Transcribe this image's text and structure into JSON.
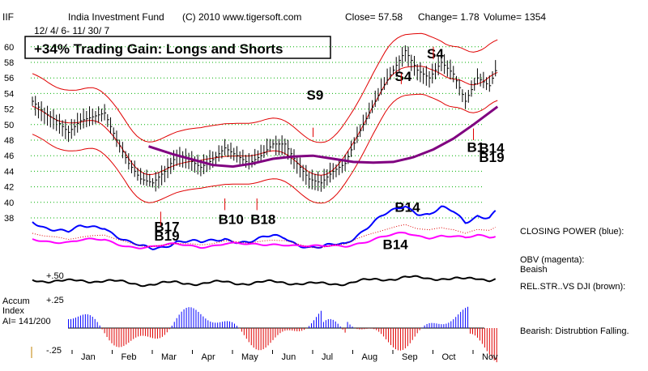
{
  "header": {
    "ticker": "IIF",
    "name": "India Investment Fund",
    "copyright": "(C) 2010 www.tigersoft.com",
    "close": "Close=  57.58",
    "change": "Change= 1.78",
    "volume": "Volume= 1354",
    "date_range": "12/ 4/ 6- 11/ 30/ 7",
    "gain_box": "+34% Trading Gain: Longs and Shorts"
  },
  "chart_data": {
    "type": "line",
    "title": "India Investment Fund",
    "months": [
      "Jan",
      "Feb",
      "Mar",
      "Apr",
      "May",
      "Jun",
      "Jul",
      "Aug",
      "Sep",
      "Oct",
      "Nov"
    ],
    "y_ticks": [
      38,
      40,
      42,
      44,
      46,
      48,
      50,
      52,
      54,
      56,
      58,
      60
    ],
    "ylim": [
      37,
      62
    ],
    "grid": true,
    "price_series": {
      "name": "IIF",
      "x": [
        0.0,
        0.3,
        0.6,
        0.9,
        1.2,
        1.5,
        1.8,
        2.1,
        2.4,
        2.7,
        3.0,
        3.3,
        3.6,
        3.9,
        4.2,
        4.5,
        4.8,
        5.1,
        5.4,
        5.7,
        6.0,
        6.3,
        6.6,
        6.9,
        7.2,
        7.5,
        7.8,
        8.1,
        8.4,
        8.7,
        9.0,
        9.3,
        9.6,
        9.9,
        10.2,
        10.5,
        10.8,
        11.1,
        11.4,
        11.6
      ],
      "close": [
        53.0,
        51.5,
        50.5,
        49.0,
        50.5,
        51.0,
        51.5,
        48.0,
        45.0,
        43.0,
        42.5,
        44.0,
        46.0,
        45.5,
        44.5,
        45.5,
        47.0,
        46.0,
        45.0,
        46.0,
        47.5,
        47.5,
        45.0,
        43.0,
        42.5,
        44.0,
        45.0,
        48.5,
        51.5,
        54.5,
        57.0,
        59.5,
        57.0,
        56.0,
        58.0,
        56.5,
        53.0,
        56.0,
        55.0,
        57.58
      ]
    },
    "moving_average_200": {
      "name": "200-day MA",
      "x": [
        2.9,
        3.5,
        4.0,
        4.5,
        5.0,
        5.5,
        6.0,
        6.5,
        7.0,
        7.5,
        8.0,
        8.5,
        9.0,
        9.5,
        10.0,
        10.5,
        11.0,
        11.6
      ],
      "values": [
        47.2,
        46.2,
        45.5,
        44.8,
        44.6,
        45.0,
        45.6,
        45.9,
        46.0,
        45.6,
        45.2,
        45.1,
        45.2,
        45.8,
        46.8,
        48.2,
        50.0,
        52.3
      ]
    },
    "signals": [
      {
        "label": "S4",
        "x": 10.0,
        "y": 58.5
      },
      {
        "label": "S4",
        "x": 9.2,
        "y": 55.6
      },
      {
        "label": "S9",
        "x": 7.0,
        "y": 53.2
      },
      {
        "label": "B17",
        "x": 3.2,
        "y": 36.3
      },
      {
        "label": "B19",
        "x": 3.2,
        "y": 35.1
      },
      {
        "label": "B10",
        "x": 4.8,
        "y": 37.2
      },
      {
        "label": "B18",
        "x": 5.6,
        "y": 37.2
      },
      {
        "label": "B1",
        "x": 11.0,
        "y": 46.5
      },
      {
        "label": "B14",
        "x": 11.3,
        "y": 46.4
      },
      {
        "label": "B19",
        "x": 11.3,
        "y": 45.2
      },
      {
        "label": "B14",
        "x": 9.2,
        "y": 38.8
      },
      {
        "label": "B14",
        "x": 8.9,
        "y": 34.0
      }
    ],
    "accum_index": {
      "label_line1": "Accum",
      "label_line2": "Index",
      "label_line3": "AI= 141/200",
      "y_top": "+.25",
      "y_bottom": "-.25"
    },
    "closing_power_tick": "+.50"
  },
  "side_labels": {
    "closing_power": "CLOSING POWER (blue):",
    "obv": "OBV (magenta):",
    "obv_state": "Beaish",
    "rel_str": "REL.STR..VS DJI (brown):",
    "bearish": "Bearish:  Distrubtion Falling."
  },
  "colors": {
    "price_bars": "#000000",
    "bands": "#e00000",
    "ma200": "#800080",
    "closing_power": "#0000ff",
    "obv": "#ff00ff",
    "rel_str": "#000000",
    "grid": "#00b000",
    "accum_pos": "#0000ff",
    "accum_neg": "#e00000"
  }
}
